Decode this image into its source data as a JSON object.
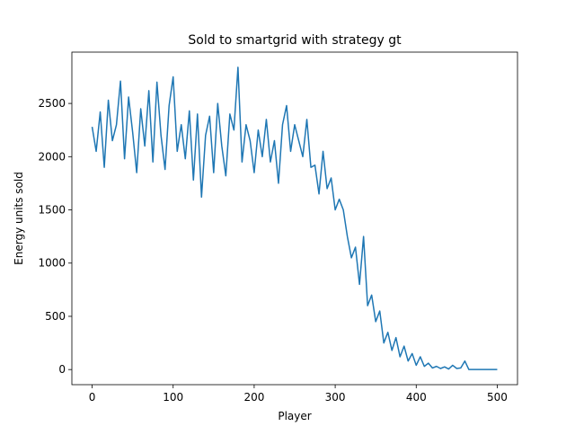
{
  "chart_data": {
    "type": "line",
    "title": "Sold to smartgrid with strategy gt",
    "x_label": "Player",
    "y_label": "Energy units sold",
    "x": [
      0,
      5,
      10,
      15,
      20,
      25,
      30,
      35,
      40,
      45,
      50,
      55,
      60,
      65,
      70,
      75,
      80,
      85,
      90,
      95,
      100,
      105,
      110,
      115,
      120,
      125,
      130,
      135,
      140,
      145,
      150,
      155,
      160,
      165,
      170,
      175,
      180,
      185,
      190,
      195,
      200,
      205,
      210,
      215,
      220,
      225,
      230,
      235,
      240,
      245,
      250,
      255,
      260,
      265,
      270,
      275,
      280,
      285,
      290,
      295,
      300,
      305,
      310,
      315,
      320,
      325,
      330,
      335,
      340,
      345,
      350,
      355,
      360,
      365,
      370,
      375,
      380,
      385,
      390,
      395,
      400,
      405,
      410,
      415,
      420,
      425,
      430,
      435,
      440,
      445,
      450,
      455,
      460,
      465,
      470,
      475,
      480,
      485,
      490,
      495,
      500
    ],
    "series": [
      {
        "name": "sold",
        "color": "#1f77b4",
        "values": [
          2280,
          2050,
          2420,
          1900,
          2530,
          2150,
          2300,
          2710,
          1980,
          2560,
          2230,
          1850,
          2450,
          2100,
          2620,
          1950,
          2700,
          2200,
          1880,
          2480,
          2750,
          2050,
          2300,
          1980,
          2430,
          1780,
          2400,
          1620,
          2200,
          2380,
          1850,
          2500,
          2100,
          1820,
          2400,
          2250,
          2840,
          1950,
          2300,
          2150,
          1850,
          2250,
          2000,
          2350,
          1950,
          2150,
          1750,
          2300,
          2480,
          2050,
          2300,
          2150,
          2000,
          2350,
          1900,
          1920,
          1650,
          2050,
          1700,
          1800,
          1500,
          1600,
          1500,
          1250,
          1050,
          1150,
          800,
          1250,
          600,
          700,
          450,
          550,
          250,
          350,
          180,
          300,
          120,
          220,
          80,
          150,
          40,
          120,
          30,
          60,
          15,
          30,
          10,
          25,
          5,
          40,
          10,
          15,
          80,
          0,
          0,
          0,
          0,
          0,
          0,
          0,
          0
        ]
      }
    ],
    "xlim": [
      -25,
      525
    ],
    "ylim": [
      -142,
      2982
    ],
    "xticks": [
      0,
      100,
      200,
      300,
      400,
      500
    ],
    "yticks": [
      0,
      500,
      1000,
      1500,
      2000,
      2500
    ]
  }
}
